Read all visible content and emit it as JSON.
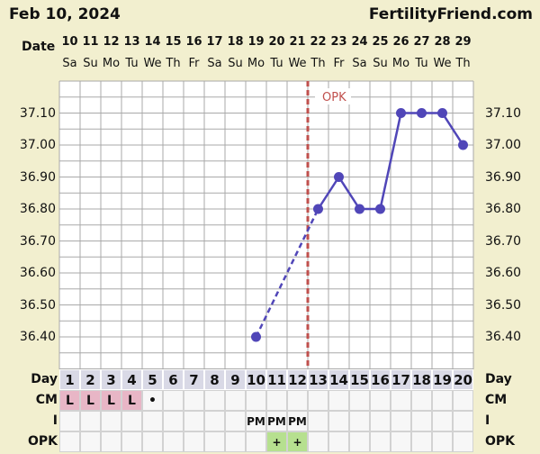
{
  "header": {
    "date": "Feb 10, 2024",
    "site": "FertilityFriend.com"
  },
  "labels": {
    "date": "Date",
    "day": "Day",
    "cm": "CM",
    "intercourse": "I",
    "opk": "OPK"
  },
  "colors": {
    "line": "#5046b8",
    "opk_line": "#c0504d",
    "grid": "#a9a9a9",
    "cm_fill": "#e8b6c6",
    "opk_fill": "#b6e08f",
    "row_bg": "#f7f7f7",
    "day_bg": "#d9d9e6"
  },
  "chart_data": {
    "type": "line",
    "title": "",
    "xlabel": "Day",
    "ylabel": "",
    "cycle_days": [
      1,
      2,
      3,
      4,
      5,
      6,
      7,
      8,
      9,
      10,
      11,
      12,
      13,
      14,
      15,
      16,
      17,
      18,
      19,
      20
    ],
    "dates": [
      "10",
      "11",
      "12",
      "13",
      "14",
      "15",
      "16",
      "17",
      "18",
      "19",
      "20",
      "21",
      "22",
      "23",
      "24",
      "25",
      "26",
      "27",
      "28",
      "29"
    ],
    "weekdays": [
      "Sa",
      "Su",
      "Mo",
      "Tu",
      "We",
      "Th",
      "Fr",
      "Sa",
      "Su",
      "Mo",
      "Tu",
      "We",
      "Th",
      "Fr",
      "Sa",
      "Su",
      "Mo",
      "Tu",
      "We",
      "Th"
    ],
    "y_ticks": [
      "37.10",
      "37.00",
      "36.90",
      "36.80",
      "36.70",
      "36.60",
      "36.50",
      "36.40"
    ],
    "ylim": [
      36.3,
      37.2
    ],
    "series": [
      {
        "values": [
          null,
          null,
          null,
          null,
          null,
          null,
          null,
          null,
          null,
          36.4,
          null,
          null,
          36.8,
          36.9,
          36.8,
          36.8,
          37.1,
          37.1,
          37.1,
          37.0
        ]
      }
    ],
    "dashed_segment": [
      10,
      13
    ],
    "annotation": {
      "label": "OPK",
      "between_days": [
        12,
        13
      ]
    },
    "rows": {
      "cm": [
        "L",
        "L",
        "L",
        "L",
        "•",
        "",
        "",
        "",
        "",
        "",
        "",
        "",
        "",
        "",
        "",
        "",
        "",
        "",
        "",
        ""
      ],
      "intercourse": [
        "",
        "",
        "",
        "",
        "",
        "",
        "",
        "",
        "",
        "PM",
        "PM",
        "PM",
        "",
        "",
        "",
        "",
        "",
        "",
        "",
        ""
      ],
      "opk": [
        "",
        "",
        "",
        "",
        "",
        "",
        "",
        "",
        "",
        "",
        "+",
        "+",
        "",
        "",
        "",
        "",
        "",
        "",
        "",
        ""
      ]
    }
  }
}
